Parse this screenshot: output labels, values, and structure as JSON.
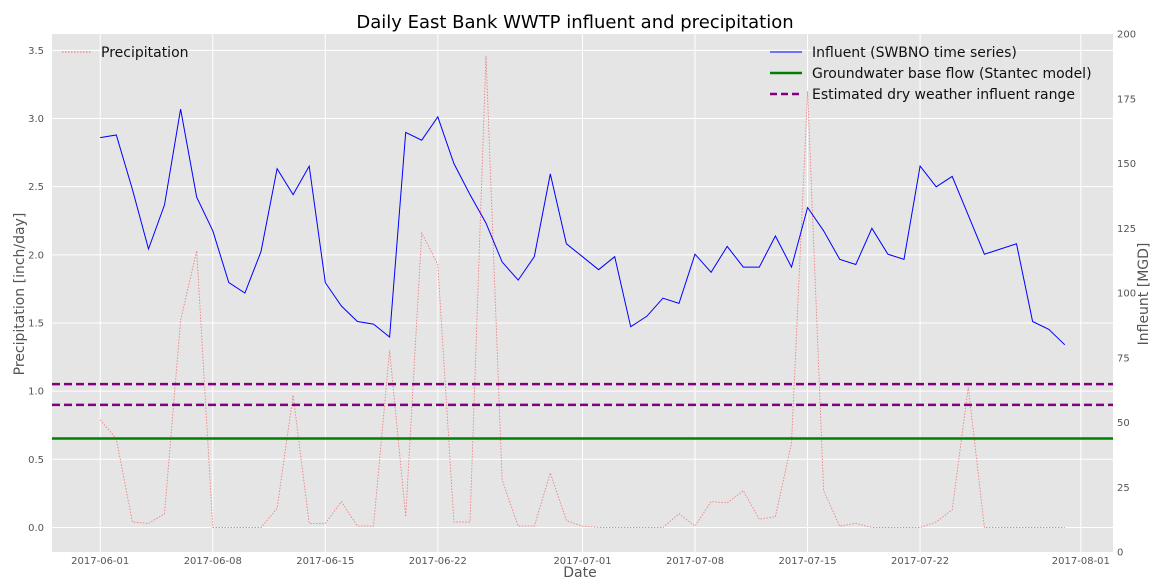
{
  "chart_data": {
    "type": "line",
    "title": "Daily East Bank WWTP influent and precipitation",
    "xlabel": "Date",
    "ylabel_left": "Precipitation [inch/day]",
    "ylabel_right": "Infleunt [MGD]",
    "x_start": "2017-05-29",
    "x_end": "2017-08-03",
    "ylim_left": [
      -0.18,
      3.62
    ],
    "ylim_right": [
      0,
      200
    ],
    "x_ticks": [
      "2017-06-01",
      "2017-06-08",
      "2017-06-15",
      "2017-06-22",
      "2017-07-01",
      "2017-07-08",
      "2017-07-15",
      "2017-07-22",
      "2017-08-01"
    ],
    "y_ticks_left": [
      "0.0",
      "0.5",
      "1.0",
      "1.5",
      "2.0",
      "2.5",
      "3.0",
      "3.5"
    ],
    "y_ticks_right": [
      "0",
      "25",
      "50",
      "75",
      "100",
      "125",
      "150",
      "175",
      "200"
    ],
    "grid": true,
    "background": "#e5e5e5",
    "legend_left": {
      "placement": "top-left",
      "items": [
        {
          "label": "Precipitation",
          "color": "#f08080",
          "style": "dotted"
        }
      ]
    },
    "legend_right": {
      "placement": "top-right",
      "items": [
        {
          "label": "Influent (SWBNO time series)",
          "color": "#0000ff",
          "style": "solid"
        },
        {
          "label": "Groundwater base flow (Stantec model)",
          "color": "#008000",
          "style": "solid"
        },
        {
          "label": "Estimated dry weather influent range",
          "color": "#800080",
          "style": "dashed"
        }
      ]
    },
    "series": [
      {
        "name": "Precipitation",
        "axis": "left",
        "color": "#f08080",
        "style": "dotted",
        "dates": [
          "2017-06-01",
          "2017-06-02",
          "2017-06-03",
          "2017-06-04",
          "2017-06-05",
          "2017-06-06",
          "2017-06-07",
          "2017-06-08",
          "2017-06-09",
          "2017-06-10",
          "2017-06-11",
          "2017-06-12",
          "2017-06-13",
          "2017-06-14",
          "2017-06-15",
          "2017-06-16",
          "2017-06-17",
          "2017-06-18",
          "2017-06-19",
          "2017-06-20",
          "2017-06-21",
          "2017-06-22",
          "2017-06-23",
          "2017-06-24",
          "2017-06-25",
          "2017-06-26",
          "2017-06-27",
          "2017-06-28",
          "2017-06-29",
          "2017-06-30",
          "2017-07-01",
          "2017-07-02",
          "2017-07-03",
          "2017-07-04",
          "2017-07-05",
          "2017-07-06",
          "2017-07-07",
          "2017-07-08",
          "2017-07-09",
          "2017-07-10",
          "2017-07-11",
          "2017-07-12",
          "2017-07-13",
          "2017-07-14",
          "2017-07-15",
          "2017-07-16",
          "2017-07-17",
          "2017-07-18",
          "2017-07-19",
          "2017-07-20",
          "2017-07-21",
          "2017-07-22",
          "2017-07-23",
          "2017-07-24",
          "2017-07-25",
          "2017-07-26",
          "2017-07-27",
          "2017-07-28",
          "2017-07-29",
          "2017-07-30",
          "2017-07-31"
        ],
        "values": [
          0.79,
          0.65,
          0.04,
          0.03,
          0.1,
          1.52,
          2.03,
          0.0,
          0.0,
          0.0,
          0.0,
          0.14,
          0.97,
          0.03,
          0.03,
          0.19,
          0.01,
          0.01,
          1.3,
          0.08,
          2.16,
          1.93,
          0.04,
          0.04,
          3.46,
          0.35,
          0.01,
          0.01,
          0.4,
          0.05,
          0.01,
          0.0,
          0.0,
          0.0,
          0.0,
          0.0,
          0.1,
          0.01,
          0.19,
          0.18,
          0.27,
          0.06,
          0.08,
          0.62,
          3.2,
          0.27,
          0.01,
          0.03,
          0.0,
          0.0,
          0.0,
          0.0,
          0.04,
          0.13,
          1.03,
          0.0,
          0.0,
          0.0,
          0.0,
          0.0,
          0.0
        ]
      },
      {
        "name": "Influent (SWBNO time series)",
        "axis": "right",
        "color": "#0000ff",
        "style": "solid",
        "dates": [
          "2017-06-01",
          "2017-06-02",
          "2017-06-03",
          "2017-06-04",
          "2017-06-05",
          "2017-06-06",
          "2017-06-07",
          "2017-06-08",
          "2017-06-09",
          "2017-06-10",
          "2017-06-11",
          "2017-06-12",
          "2017-06-13",
          "2017-06-14",
          "2017-06-15",
          "2017-06-16",
          "2017-06-17",
          "2017-06-18",
          "2017-06-19",
          "2017-06-20",
          "2017-06-21",
          "2017-06-22",
          "2017-06-23",
          "2017-06-24",
          "2017-06-25",
          "2017-06-26",
          "2017-06-27",
          "2017-06-28",
          "2017-06-29",
          "2017-06-30",
          "2017-07-01",
          "2017-07-02",
          "2017-07-03",
          "2017-07-04",
          "2017-07-05",
          "2017-07-06",
          "2017-07-07",
          "2017-07-08",
          "2017-07-09",
          "2017-07-10",
          "2017-07-11",
          "2017-07-12",
          "2017-07-13",
          "2017-07-14",
          "2017-07-15",
          "2017-07-16",
          "2017-07-17",
          "2017-07-18",
          "2017-07-19",
          "2017-07-20",
          "2017-07-21",
          "2017-07-22",
          "2017-07-23",
          "2017-07-24",
          "2017-07-25",
          "2017-07-26",
          "2017-07-27",
          "2017-07-28",
          "2017-07-29",
          "2017-07-30",
          "2017-07-31"
        ],
        "values": [
          160,
          161,
          140,
          117,
          134,
          171,
          137,
          124,
          104,
          100,
          116,
          148,
          138,
          149,
          104,
          95,
          89,
          88,
          83,
          162,
          159,
          168,
          150,
          138,
          127,
          112,
          105,
          114,
          146,
          119,
          114,
          109,
          114,
          87,
          91,
          98,
          96,
          115,
          108,
          118,
          110,
          110,
          122,
          110,
          133,
          124,
          113,
          111,
          125,
          115,
          113,
          149,
          141,
          145,
          130,
          115,
          117,
          119,
          89,
          86,
          80
        ]
      },
      {
        "name": "Groundwater base flow (Stantec model)",
        "axis": "right",
        "color": "#008000",
        "style": "solid",
        "values": [
          43.8
        ]
      },
      {
        "name": "Estimated dry weather influent range",
        "axis": "right",
        "color": "#800080",
        "style": "dashed",
        "values": [
          56.8,
          64.8
        ]
      }
    ]
  }
}
